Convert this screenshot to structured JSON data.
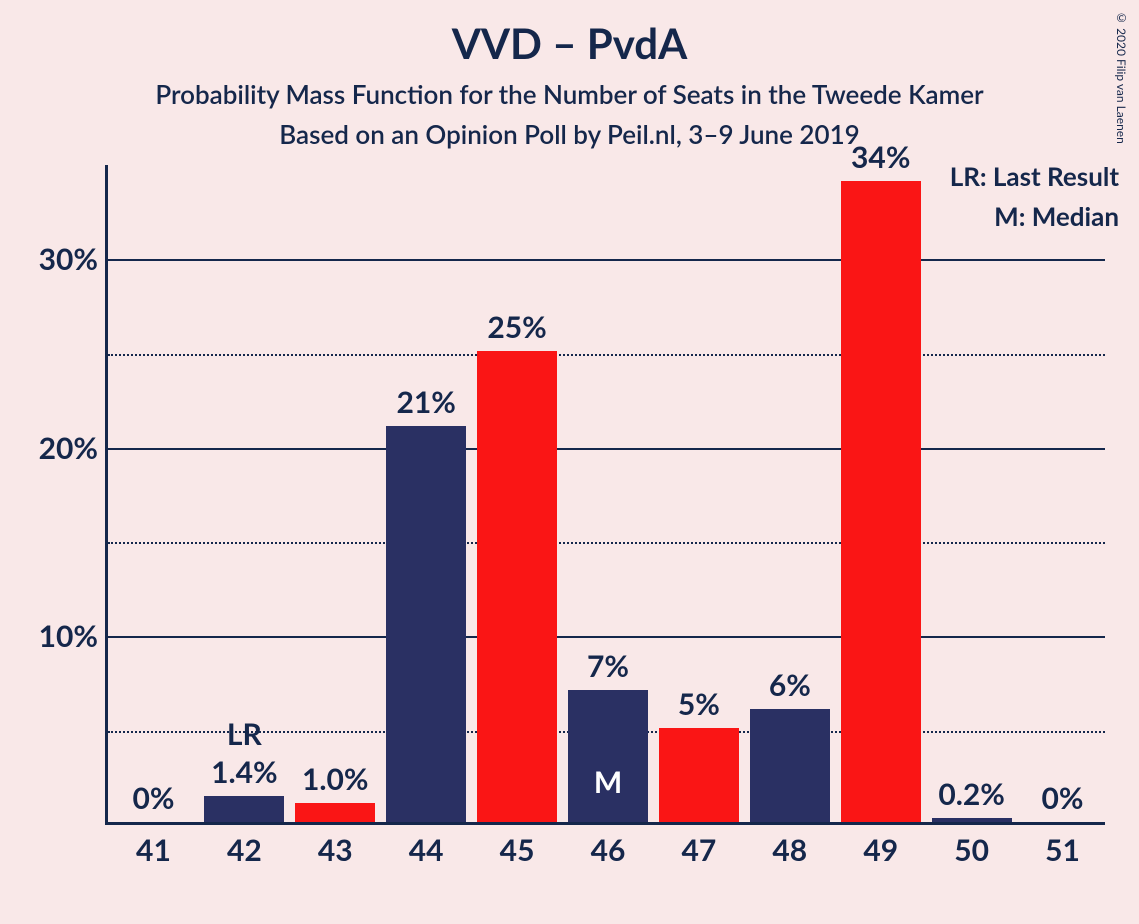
{
  "chart": {
    "title": "VVD – PvdA",
    "subtitle1": "Probability Mass Function for the Number of Seats in the Tweede Kamer",
    "subtitle2": "Based on an Opinion Poll by Peil.nl, 3–9 June 2019",
    "copyright": "© 2020 Filip van Laenen",
    "background_color": "#f9e8e8",
    "axis_color": "#15274b",
    "text_color": "#15274b",
    "colors": {
      "navy": "#2a3063",
      "red": "#fa1515"
    },
    "ymax": 35,
    "y_solid_ticks": [
      10,
      20,
      30
    ],
    "y_dotted_ticks": [
      5,
      15,
      25
    ],
    "ytick_labels": [
      "10%",
      "20%",
      "30%"
    ],
    "legend": {
      "lr": "LR: Last Result",
      "m": "M: Median"
    },
    "bars": [
      {
        "x": "41",
        "value": 0,
        "label": "0%",
        "color": "navy",
        "mark": null
      },
      {
        "x": "42",
        "value": 1.4,
        "label": "1.4%",
        "color": "navy",
        "mark": "LR"
      },
      {
        "x": "43",
        "value": 1.0,
        "label": "1.0%",
        "color": "red",
        "mark": null
      },
      {
        "x": "44",
        "value": 21,
        "label": "21%",
        "color": "navy",
        "mark": null
      },
      {
        "x": "45",
        "value": 25,
        "label": "25%",
        "color": "red",
        "mark": null
      },
      {
        "x": "46",
        "value": 7,
        "label": "7%",
        "color": "navy",
        "mark": "M"
      },
      {
        "x": "47",
        "value": 5,
        "label": "5%",
        "color": "red",
        "mark": null
      },
      {
        "x": "48",
        "value": 6,
        "label": "6%",
        "color": "navy",
        "mark": null
      },
      {
        "x": "49",
        "value": 34,
        "label": "34%",
        "color": "red",
        "mark": null
      },
      {
        "x": "50",
        "value": 0.2,
        "label": "0.2%",
        "color": "navy",
        "mark": null
      },
      {
        "x": "51",
        "value": 0,
        "label": "0%",
        "color": "red",
        "mark": null
      }
    ]
  }
}
